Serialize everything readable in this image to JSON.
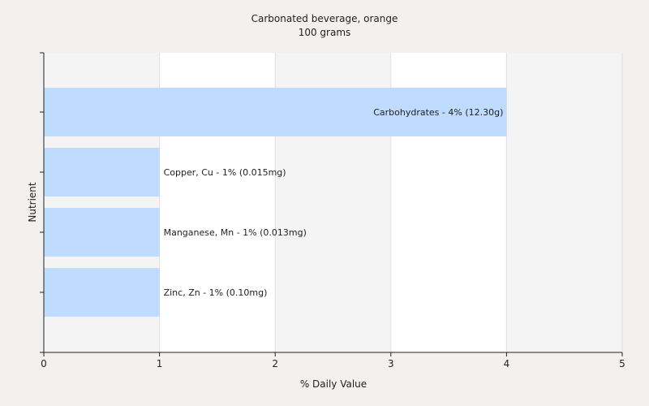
{
  "chart_data": {
    "type": "bar",
    "orientation": "horizontal",
    "title": "Carbonated beverage, orange",
    "subtitle": "100 grams",
    "xlabel": "% Daily Value",
    "ylabel": "Nutrient",
    "xlim": [
      0,
      5
    ],
    "x_ticks": [
      "0",
      "1",
      "2",
      "3",
      "4",
      "5"
    ],
    "grid": true,
    "bar_color": "#bfdbff",
    "categories": [
      "Carbohydrates",
      "Copper, Cu",
      "Manganese, Mn",
      "Zinc, Zn"
    ],
    "values": [
      4,
      1,
      1,
      1
    ],
    "labels": [
      "Carbohydrates - 4% (12.30g)",
      "Copper, Cu - 1% (0.015mg)",
      "Manganese, Mn - 1% (0.013mg)",
      "Zinc, Zn - 1% (0.10mg)"
    ]
  }
}
